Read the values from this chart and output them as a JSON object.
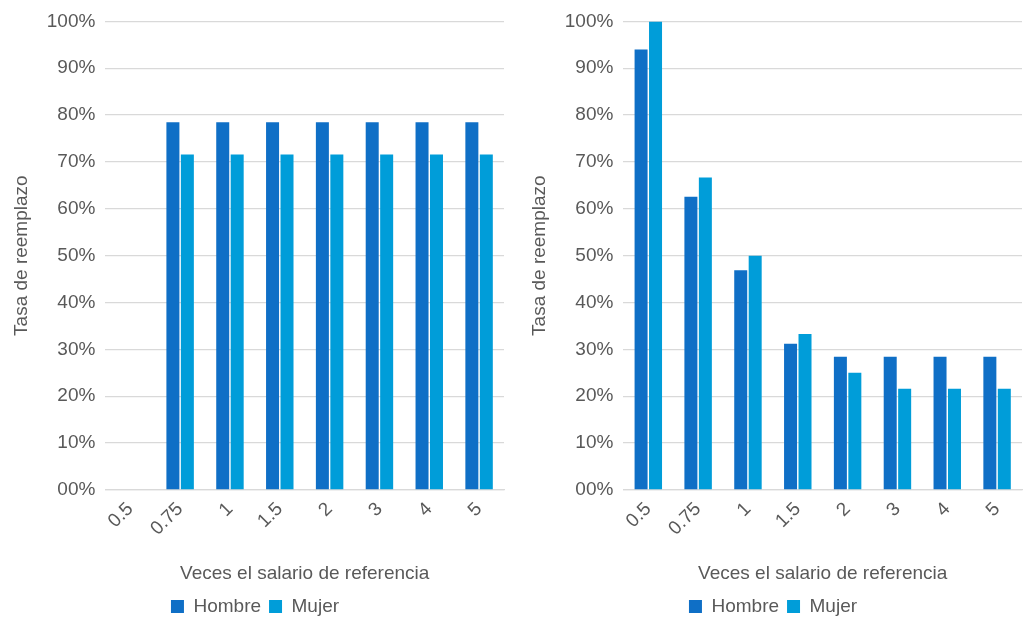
{
  "chart_data": [
    {
      "type": "bar",
      "categories": [
        "0.5",
        "0.75",
        "1",
        "1.5",
        "2",
        "3",
        "4",
        "5"
      ],
      "xlabel": "Veces el salario de referencia",
      "ylabel": "Tasa de reemplazo",
      "ylim": [
        0,
        100
      ],
      "yticks": [
        {
          "value": 0,
          "label": "00%"
        },
        {
          "value": 10,
          "label": "10%"
        },
        {
          "value": 20,
          "label": "20%"
        },
        {
          "value": 30,
          "label": "30%"
        },
        {
          "value": 40,
          "label": "40%"
        },
        {
          "value": 50,
          "label": "50%"
        },
        {
          "value": 60,
          "label": "60%"
        },
        {
          "value": 70,
          "label": "70%"
        },
        {
          "value": 80,
          "label": "80%"
        },
        {
          "value": 90,
          "label": "90%"
        },
        {
          "value": 100,
          "label": "100%"
        }
      ],
      "grid": "y",
      "legend": "bottom",
      "series": [
        {
          "name": "Hombre",
          "color": "#0f6fc6",
          "values": [
            null,
            78.5,
            78.5,
            78.5,
            78.5,
            78.5,
            78.5,
            78.5
          ]
        },
        {
          "name": "Mujer",
          "color": "#009dd9",
          "values": [
            null,
            71.6,
            71.6,
            71.6,
            71.6,
            71.6,
            71.6,
            71.6
          ]
        }
      ]
    },
    {
      "type": "bar",
      "categories": [
        "0.5",
        "0.75",
        "1",
        "1.5",
        "2",
        "3",
        "4",
        "5"
      ],
      "xlabel": "Veces el salario de referencia",
      "ylabel": "Tasa de reemplazo",
      "ylim": [
        0,
        100
      ],
      "yticks": [
        {
          "value": 0,
          "label": "00%"
        },
        {
          "value": 10,
          "label": "10%"
        },
        {
          "value": 20,
          "label": "20%"
        },
        {
          "value": 30,
          "label": "30%"
        },
        {
          "value": 40,
          "label": "40%"
        },
        {
          "value": 50,
          "label": "50%"
        },
        {
          "value": 60,
          "label": "60%"
        },
        {
          "value": 70,
          "label": "70%"
        },
        {
          "value": 80,
          "label": "80%"
        },
        {
          "value": 90,
          "label": "90%"
        },
        {
          "value": 100,
          "label": "100%"
        }
      ],
      "grid": "y",
      "legend": "bottom",
      "series": [
        {
          "name": "Hombre",
          "color": "#0f6fc6",
          "values": [
            94,
            62.6,
            46.9,
            31.2,
            28.4,
            28.4,
            28.4,
            28.4
          ]
        },
        {
          "name": "Mujer",
          "color": "#009dd9",
          "values": [
            100,
            66.7,
            50,
            33.3,
            25,
            21.6,
            21.6,
            21.6
          ]
        }
      ]
    }
  ]
}
